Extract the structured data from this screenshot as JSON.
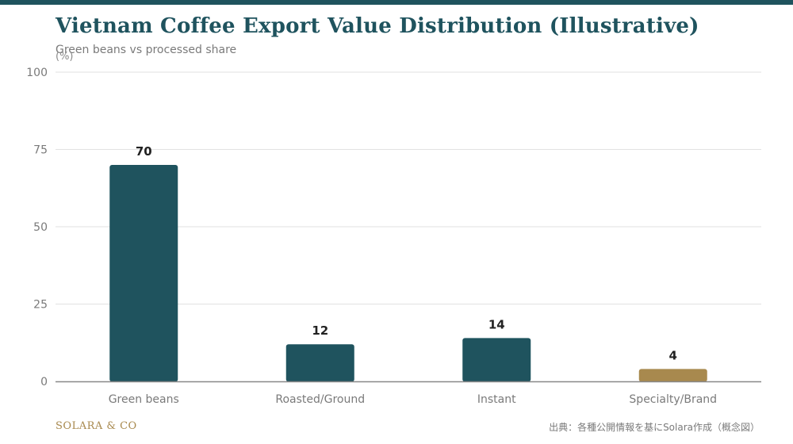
{
  "header": {
    "title": "Vietnam Coffee Export Value Distribution (Illustrative)",
    "subtitle": "Green beans vs processed share",
    "unit": "(%)"
  },
  "footer": {
    "brand": "SOLARA & CO",
    "source": "出典：各種公開情報を基にSolara作成（概念図）"
  },
  "colors": {
    "primary": "#1f535e",
    "accent": "#a8894e",
    "grid": "#e2e2e2",
    "axis": "#888888",
    "tick_text": "#7a7a7a",
    "value_text": "#222222"
  },
  "chart_data": {
    "type": "bar",
    "categories": [
      "Green beans",
      "Roasted/Ground",
      "Instant",
      "Specialty/Brand"
    ],
    "values": [
      70,
      12,
      14,
      4
    ],
    "highlight_index": 3,
    "ylim": [
      0,
      100
    ],
    "yticks": [
      0,
      25,
      50,
      75,
      100
    ],
    "ylabel": "(%)",
    "grid": true
  }
}
